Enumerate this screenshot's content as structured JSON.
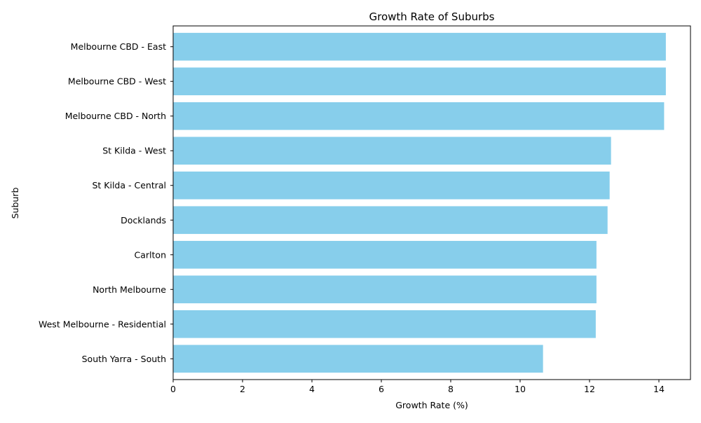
{
  "chart_data": {
    "type": "bar",
    "orientation": "horizontal",
    "title": "Growth Rate of Suburbs",
    "xlabel": "Growth Rate (%)",
    "ylabel": "Suburb",
    "categories": [
      "Melbourne CBD - East",
      "Melbourne CBD - West",
      "Melbourne CBD - North",
      "St Kilda - West",
      "St Kilda - Central",
      "Docklands",
      "Carlton",
      "North Melbourne",
      "West Melbourne - Residential",
      "South Yarra - South"
    ],
    "values": [
      14.2,
      14.2,
      14.15,
      12.62,
      12.58,
      12.52,
      12.2,
      12.2,
      12.18,
      10.66
    ],
    "xlim": [
      0,
      14.91
    ],
    "xticks": [
      0,
      2,
      4,
      6,
      8,
      10,
      12,
      14
    ],
    "grid": false,
    "bar_color": "#87CEEB"
  }
}
